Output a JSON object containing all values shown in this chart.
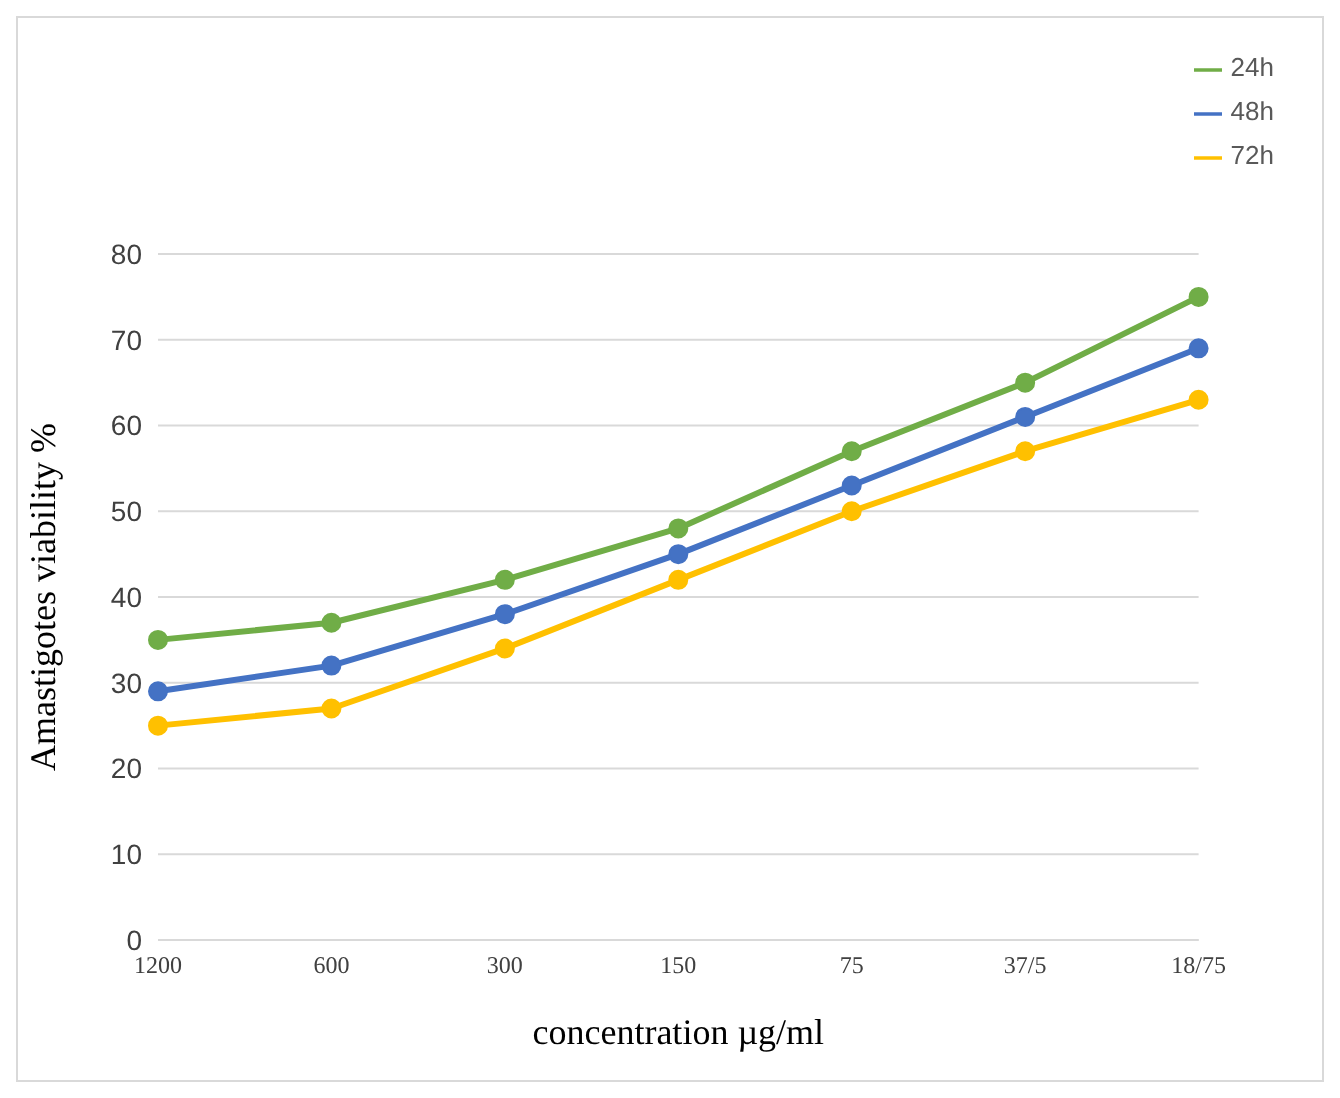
{
  "chart_data": {
    "type": "line",
    "xlabel": "concentration µg/ml",
    "ylabel": "Amastigotes viability %",
    "categories": [
      "1200",
      "600",
      "300",
      "150",
      "75",
      "37/5",
      "18/75"
    ],
    "series": [
      {
        "name": "24h",
        "color": "#70ad47",
        "values": [
          35,
          37,
          42,
          48,
          57,
          65,
          75
        ]
      },
      {
        "name": "48h",
        "color": "#4472c4",
        "values": [
          29,
          32,
          38,
          45,
          53,
          61,
          69
        ]
      },
      {
        "name": "72h",
        "color": "#ffc000",
        "values": [
          25,
          27,
          34,
          42,
          50,
          57,
          63
        ]
      }
    ],
    "ylim": [
      0,
      80
    ],
    "yticks": [
      0,
      10,
      20,
      30,
      40,
      50,
      60,
      70,
      80
    ],
    "grid": "y",
    "legend": "top right",
    "marker": "circle",
    "line_style": "solid"
  }
}
